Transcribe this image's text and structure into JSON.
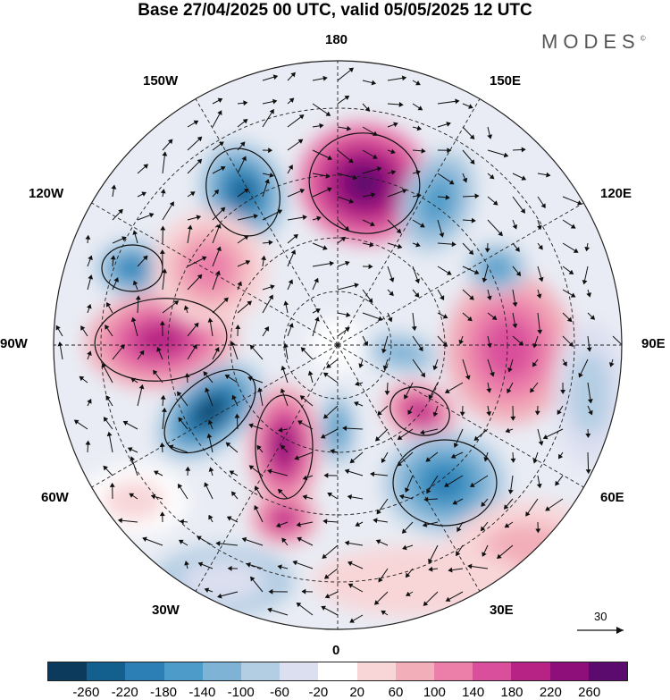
{
  "header": {
    "title": "Base 27/04/2025 00 UTC, valid 05/05/2025 12 UTC",
    "brand": "MODES",
    "brand_mark": "©"
  },
  "map": {
    "projection": "north polar stereographic",
    "labels": {
      "top": "180",
      "bottom": "0",
      "left": "90W",
      "right": "90E",
      "upper_left": "150W",
      "upper_right": "150E",
      "mid_left_upper": "120W",
      "mid_right_upper": "120E",
      "mid_left_lower": "60W",
      "mid_right_lower": "60E",
      "lower_left": "30W",
      "lower_right": "30E"
    },
    "vector_reference": "30"
  },
  "colorbar": {
    "ticks": [
      "-260",
      "-220",
      "-180",
      "-140",
      "-100",
      "-60",
      "-20",
      "20",
      "60",
      "100",
      "140",
      "180",
      "220",
      "260"
    ],
    "colors": [
      "#0c3a5c",
      "#135f8e",
      "#2b7fb5",
      "#4d9bc8",
      "#7fb3d6",
      "#b3cde3",
      "#dcdff0",
      "#ffffff",
      "#f8d6d8",
      "#f2aeb9",
      "#eb7faa",
      "#d94f9b",
      "#b72384",
      "#8e0f7a",
      "#5a0b6d"
    ]
  }
}
